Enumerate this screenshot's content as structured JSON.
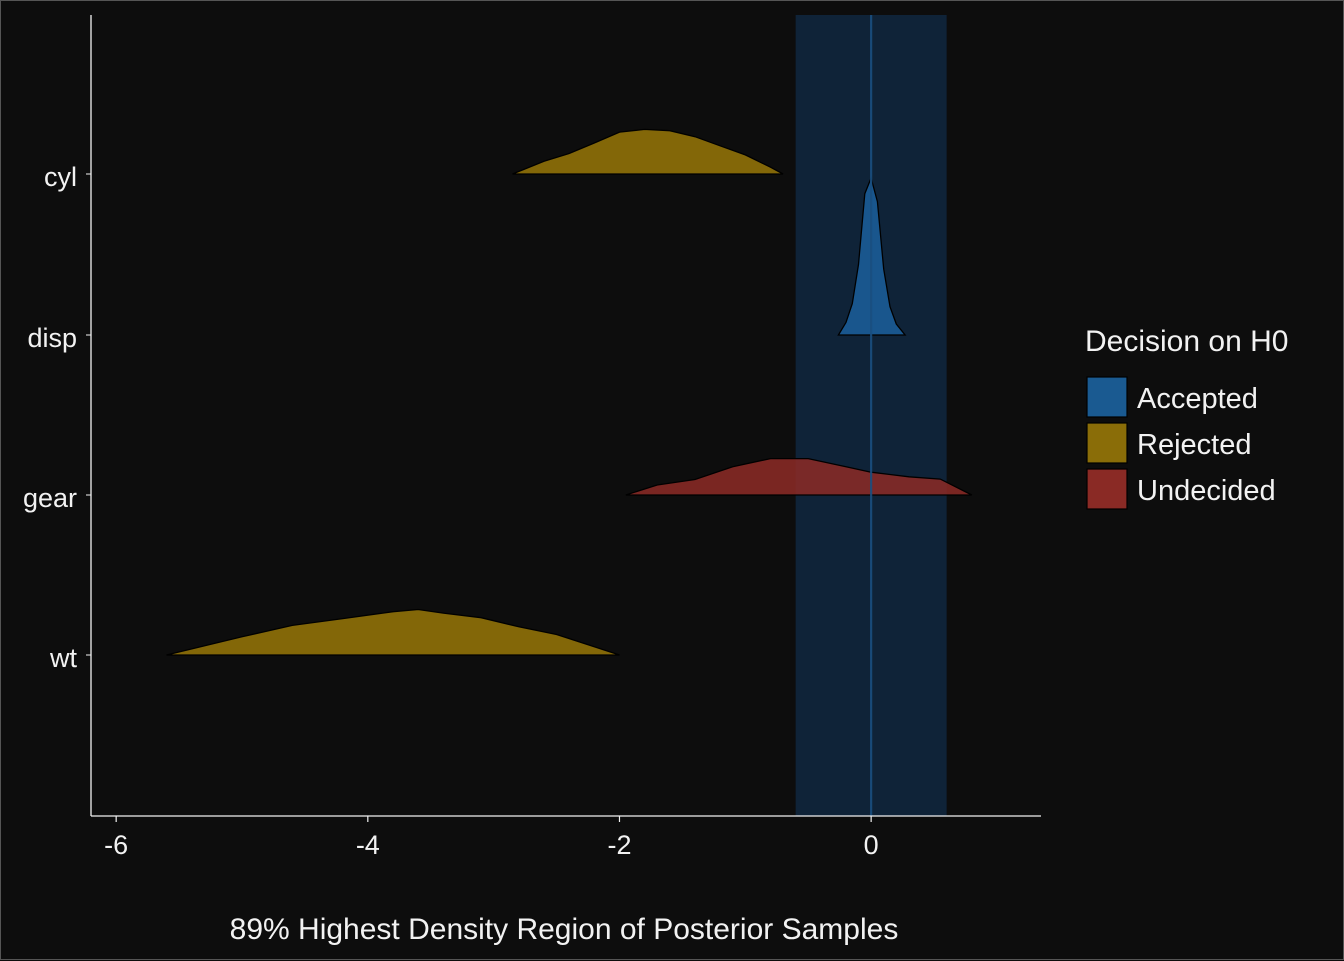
{
  "chart_data": {
    "type": "area",
    "title": "",
    "xlabel": "89% Highest Density Region of Posterior Samples",
    "ylabel": "",
    "xlim": [
      -6.2,
      1.35
    ],
    "x_ticks": [
      "-6",
      "-4",
      "-2",
      "0"
    ],
    "x_tick_values": [
      -6,
      -4,
      -2,
      0
    ],
    "categories": [
      "cyl",
      "disp",
      "gear",
      "wt"
    ],
    "rope": {
      "low": -0.6,
      "high": 0.6,
      "color": "#0f2338"
    },
    "zero_line": 0,
    "grid": false,
    "legend": {
      "title": "Decision on H0",
      "placement": "right",
      "entries": [
        {
          "label": "Accepted",
          "color": "#1a5a91"
        },
        {
          "label": "Rejected",
          "color": "#8a6d08"
        },
        {
          "label": "Undecided",
          "color": "#8a2a25"
        }
      ]
    },
    "series": [
      {
        "category": "cyl",
        "decision": "Rejected",
        "x": [
          -2.85,
          -2.6,
          -2.4,
          -2.2,
          -2.0,
          -1.8,
          -1.6,
          -1.4,
          -1.2,
          -1.0,
          -0.8,
          -0.7
        ],
        "density": [
          0.0,
          0.28,
          0.45,
          0.68,
          0.92,
          0.98,
          0.95,
          0.82,
          0.62,
          0.42,
          0.15,
          0.0
        ]
      },
      {
        "category": "disp",
        "decision": "Accepted",
        "x": [
          -0.26,
          -0.2,
          -0.15,
          -0.1,
          -0.05,
          0.0,
          0.05,
          0.1,
          0.15,
          0.2,
          0.27
        ],
        "density": [
          0.0,
          0.08,
          0.2,
          0.45,
          0.9,
          1.0,
          0.85,
          0.42,
          0.18,
          0.07,
          0.0
        ]
      },
      {
        "category": "gear",
        "decision": "Undecided",
        "x": [
          -1.95,
          -1.7,
          -1.4,
          -1.1,
          -0.8,
          -0.5,
          -0.2,
          0.0,
          0.3,
          0.55,
          0.8
        ],
        "density": [
          0.0,
          0.22,
          0.34,
          0.62,
          0.8,
          0.8,
          0.62,
          0.5,
          0.4,
          0.35,
          0.0
        ]
      },
      {
        "category": "wt",
        "decision": "Rejected",
        "x": [
          -5.6,
          -5.3,
          -5.0,
          -4.6,
          -4.2,
          -3.8,
          -3.6,
          -3.4,
          -3.1,
          -2.8,
          -2.5,
          -2.2,
          -2.0
        ],
        "density": [
          0.0,
          0.2,
          0.4,
          0.65,
          0.8,
          0.95,
          1.0,
          0.92,
          0.82,
          0.62,
          0.45,
          0.18,
          0.0
        ]
      }
    ]
  }
}
